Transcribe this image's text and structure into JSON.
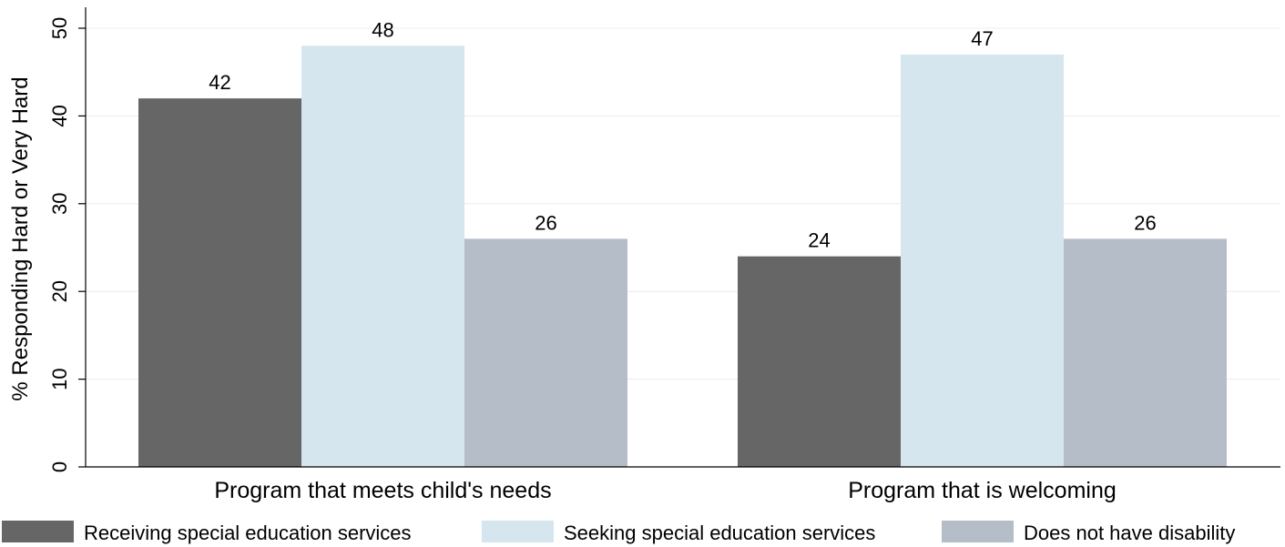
{
  "chart_data": {
    "type": "bar",
    "title": "",
    "xlabel": "",
    "ylabel": "% Responding Hard or Very Hard",
    "ylim": [
      0,
      50
    ],
    "yticks": [
      0,
      10,
      20,
      30,
      40,
      50
    ],
    "grid": true,
    "legend_position": "bottom",
    "categories": [
      "Program that meets child's needs",
      "Program that is welcoming"
    ],
    "series": [
      {
        "name": "Receiving special education services",
        "values": [
          42,
          24
        ],
        "color": "#666666"
      },
      {
        "name": "Seeking special education services",
        "values": [
          48,
          47
        ],
        "color": "#d5e6ee"
      },
      {
        "name": "Does not have disability",
        "values": [
          26,
          26
        ],
        "color": "#b4bdc8"
      }
    ]
  }
}
